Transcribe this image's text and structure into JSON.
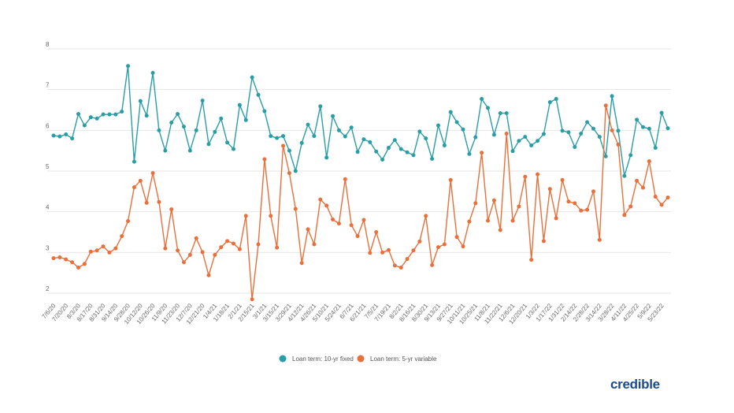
{
  "chart_data": {
    "type": "line",
    "title": "",
    "xlabel": "",
    "ylabel": "",
    "ylim": [
      2,
      8
    ],
    "yticks": [
      2,
      3,
      4,
      5,
      6,
      7,
      8
    ],
    "grid": true,
    "legend_position": "bottom-center",
    "x_start": "7/6/20",
    "x_interval": "weekly",
    "tick_labels": [
      "7/6/20",
      "7/20/20",
      "8/3/20",
      "8/17/20",
      "8/31/20",
      "9/14/20",
      "9/28/20",
      "10/12/20",
      "10/26/20",
      "11/9/20",
      "11/23/20",
      "12/7/20",
      "12/21/20",
      "1/4/21",
      "1/18/21",
      "2/1/21",
      "2/15/21",
      "3/1/21",
      "3/15/21",
      "3/29/21",
      "4/12/21",
      "4/26/21",
      "5/10/21",
      "5/24/21",
      "6/7/21",
      "6/21/21",
      "7/5/21",
      "7/19/21",
      "8/2/21",
      "8/16/21",
      "8/30/21",
      "9/13/21",
      "9/27/21",
      "10/11/21",
      "10/25/21",
      "11/8/21",
      "11/22/21",
      "12/6/21",
      "12/20/21",
      "1/3/22",
      "1/17/22",
      "1/31/22",
      "2/14/22",
      "2/28/22",
      "3/14/22",
      "3/28/22",
      "4/11/22",
      "4/25/22",
      "5/9/22",
      "5/23/22"
    ],
    "series": [
      {
        "name": "Loan term: 10-yr fixed",
        "color": "#2a9ea6",
        "values": [
          5.87,
          5.85,
          5.9,
          5.8,
          6.4,
          6.12,
          6.32,
          6.29,
          6.39,
          6.39,
          6.39,
          6.46,
          7.58,
          5.23,
          6.72,
          6.36,
          7.41,
          6.0,
          5.5,
          6.19,
          6.4,
          6.09,
          5.5,
          6.0,
          6.73,
          5.66,
          5.96,
          6.29,
          5.7,
          5.54,
          6.62,
          6.25,
          7.3,
          6.87,
          6.47,
          5.86,
          5.81,
          5.86,
          5.5,
          5.0,
          5.69,
          6.14,
          5.86,
          6.59,
          5.33,
          6.35,
          6.0,
          5.85,
          6.07,
          5.47,
          5.78,
          5.71,
          5.48,
          5.28,
          5.57,
          5.76,
          5.54,
          5.46,
          5.39,
          5.97,
          5.8,
          5.3,
          6.12,
          5.63,
          6.45,
          6.2,
          6.02,
          5.42,
          5.83,
          6.77,
          6.55,
          5.89,
          6.42,
          6.42,
          5.49,
          5.74,
          5.84,
          5.63,
          5.74,
          5.91,
          6.69,
          6.77,
          5.99,
          5.95,
          5.59,
          5.92,
          6.2,
          6.04,
          5.84,
          5.36,
          6.84,
          5.99,
          4.88,
          5.39,
          6.26,
          6.08,
          6.04,
          5.57,
          6.43,
          6.05
        ]
      },
      {
        "name": "Loan term: 5-yr variable",
        "color": "#e8703a",
        "values": [
          2.86,
          2.88,
          2.83,
          2.76,
          2.63,
          2.72,
          3.02,
          3.05,
          3.15,
          3.0,
          3.1,
          3.4,
          3.77,
          4.6,
          4.76,
          4.22,
          4.95,
          4.24,
          3.1,
          4.06,
          3.05,
          2.76,
          2.94,
          3.35,
          3.01,
          2.44,
          2.94,
          3.13,
          3.28,
          3.22,
          3.08,
          3.9,
          1.85,
          3.2,
          5.29,
          3.9,
          3.12,
          5.62,
          4.95,
          4.07,
          2.74,
          3.57,
          3.2,
          4.3,
          4.15,
          3.81,
          3.71,
          4.8,
          3.67,
          3.4,
          3.8,
          2.99,
          3.5,
          3.0,
          3.06,
          2.68,
          2.63,
          2.84,
          3.05,
          3.27,
          3.9,
          2.69,
          3.13,
          3.2,
          4.78,
          3.38,
          3.15,
          3.76,
          4.21,
          5.45,
          3.78,
          4.28,
          3.55,
          5.92,
          3.78,
          4.13,
          4.86,
          2.82,
          4.92,
          3.28,
          4.56,
          3.84,
          4.78,
          4.25,
          4.21,
          4.03,
          4.05,
          4.5,
          3.31,
          6.61,
          6.0,
          5.65,
          3.92,
          4.13,
          4.76,
          4.59,
          5.24,
          4.37,
          4.17,
          4.35
        ]
      }
    ]
  },
  "logo": {
    "text": "credible",
    "color": "#1d4a8c"
  }
}
